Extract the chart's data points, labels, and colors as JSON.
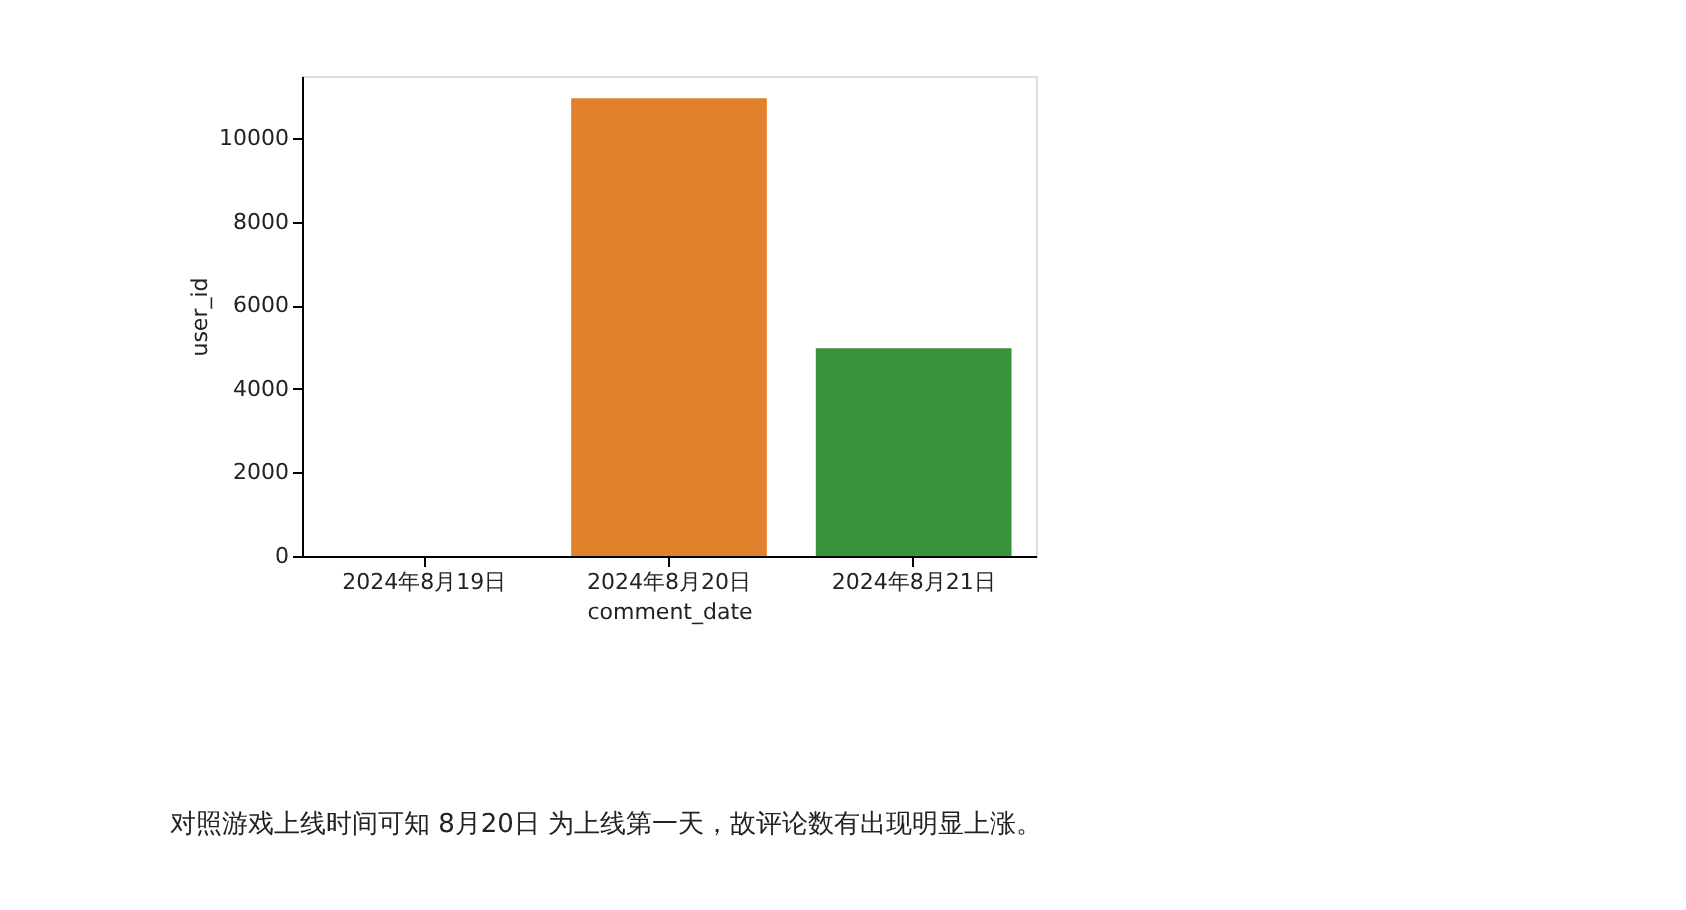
{
  "chart_data": {
    "type": "bar",
    "categories": [
      "2024年8月19日",
      "2024年8月20日",
      "2024年8月21日"
    ],
    "values": [
      0,
      10950,
      4970
    ],
    "colors": [
      "#3274a1",
      "#e1812c",
      "#3a923a"
    ],
    "xlabel": "comment_date",
    "ylabel": "user_id",
    "ylim": [
      0,
      11480
    ],
    "yticks": [
      0,
      2000,
      4000,
      6000,
      8000,
      10000
    ],
    "grid": false,
    "legend": false,
    "annotations": [
      "对照游戏上线时间可知 8月20日 为上线第一天，故评论数有出现明显上涨。"
    ]
  }
}
